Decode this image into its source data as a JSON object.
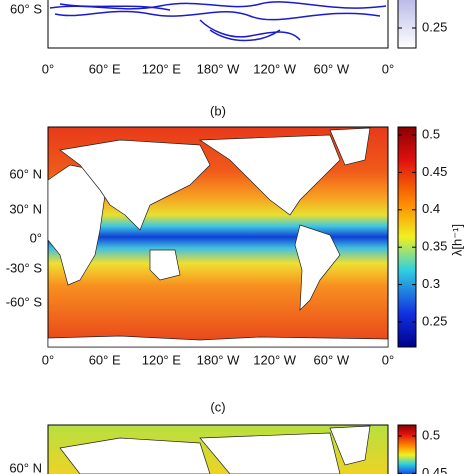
{
  "panels": [
    {
      "y_tick_labels": [
        "60° S"
      ],
      "x_tick_labels": [
        "0°",
        "60° E",
        "120° E",
        "180° W",
        "120° W",
        "60° W",
        "0°"
      ],
      "colorbar_ticks": [
        0.25
      ]
    },
    {
      "label": "(b)",
      "y_tick_labels": [
        "60° N",
        "30° N",
        "0°",
        "-30° S",
        "-60° S"
      ],
      "x_tick_labels": [
        "0°",
        "60° E",
        "120° E",
        "180° W",
        "120° W",
        "60° W",
        "0°"
      ],
      "colorbar_ticks": [
        0.5,
        0.45,
        0.4,
        0.35,
        0.3,
        0.25
      ],
      "colorbar_label": "λ[h⁻¹]"
    },
    {
      "label": "(c)",
      "y_tick_labels": [
        "60° N"
      ],
      "colorbar_ticks": [
        0.5,
        0.45
      ]
    }
  ]
}
